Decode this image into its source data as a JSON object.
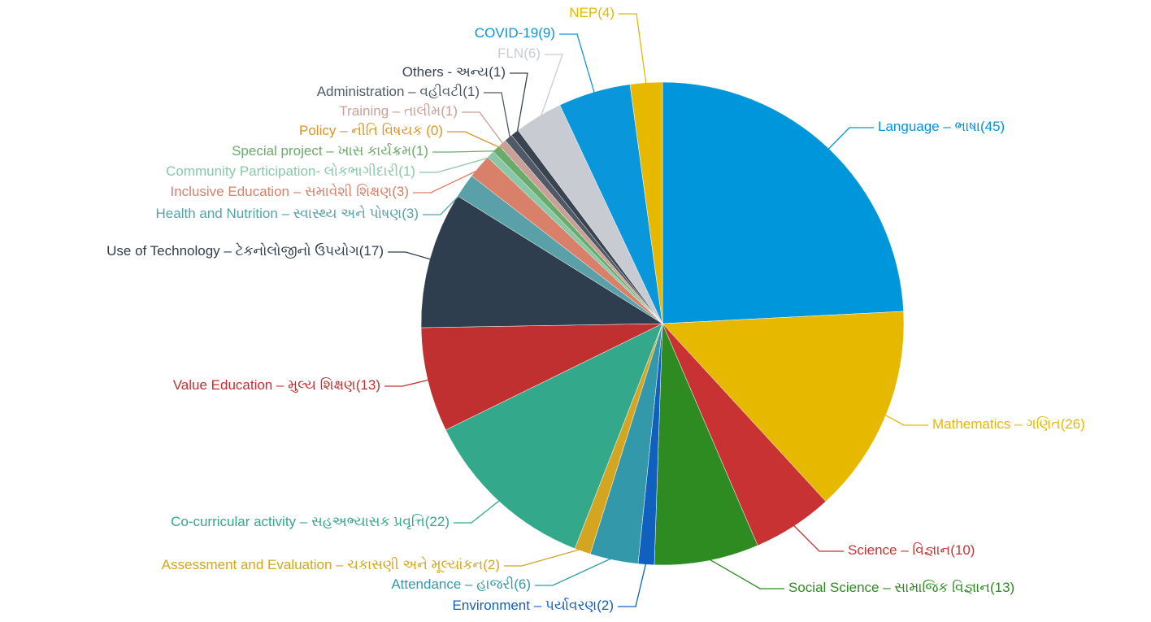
{
  "chart_data": {
    "type": "pie",
    "categories": [
      "Language – ભાષા",
      "Mathematics – ગણિત",
      "Science – વિજ્ઞાન",
      "Social Science – સામાજિક વિજ્ઞાન",
      "Environment – પર્યાવરણ",
      "Attendance – હાજરી",
      "Assessment and Evaluation – ચકાસણી અને મૂલ્યાંકન",
      "Co-curricular activity – સહઅભ્યાસક પ્રવૃત્તિ",
      "Value Education – મુલ્ય શિક્ષણ",
      "Use of Technology – ટેકનોલોજીનો ઉપયોગ",
      "Health and Nutrition – સ્વાસ્થ્ય અને પોષણ",
      "Inclusive Education – સમાવેશી શિક્ષણ",
      "Community Participation- લોકભાગીદારી",
      "Special project – ખાસ કાર્યક્રમ",
      "Policy – નીતિ વિષયક",
      "Training – તાલીમ",
      "Administration – વહીવટી",
      "Others  - અન્ય",
      "FLN",
      "COVID-19",
      "NEP"
    ],
    "values": [
      45,
      26,
      10,
      13,
      2,
      6,
      2,
      22,
      13,
      17,
      3,
      3,
      1,
      1,
      0,
      1,
      1,
      1,
      6,
      9,
      4
    ],
    "value_labels": [
      "(45)",
      "(26)",
      "(10)",
      "(13)",
      "(2)",
      "(6)",
      "(2)",
      "(22)",
      "(13)",
      "(17)",
      "(3)",
      "(3)",
      "(1)",
      "(1)",
      " (0)",
      "(1)",
      "(1)",
      "(1)",
      "(6)",
      "(9)",
      "(4)"
    ],
    "colors": [
      "#0096db",
      "#e6b800",
      "#c83232",
      "#2e8b22",
      "#1060c0",
      "#3399aa",
      "#d4a520",
      "#33a88a",
      "#c03030",
      "#2e3e4e",
      "#5aa0a8",
      "#d9806a",
      "#88c8a8",
      "#6aaa6a",
      "#d8952a",
      "#c8a098",
      "#505a66",
      "#3a4450",
      "#c8ccd2",
      "#0a96db",
      "#e6b800"
    ]
  }
}
